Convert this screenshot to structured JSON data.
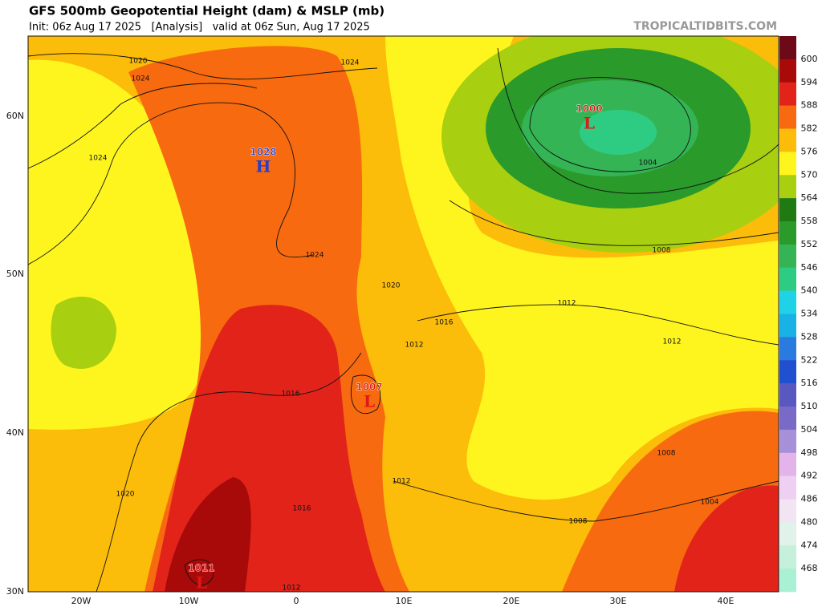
{
  "header": {
    "title": "GFS 500mb Geopotential Height (dam) & MSLP (mb)",
    "subtitle": "Init: 06z Aug 17 2025   [Analysis]   valid at 06z Sun, Aug 17 2025",
    "credit": "TROPICALTIDBITS.COM"
  },
  "colorbar": {
    "swatches": [
      "#6e0a18",
      "#a80a0a",
      "#e2231a",
      "#f76a0f",
      "#fcbc0a",
      "#fff51e",
      "#a8cf10",
      "#1f7a14",
      "#2a9a2a",
      "#34b455",
      "#2ecc82",
      "#20d2e8",
      "#1ab2e6",
      "#2a7ae0",
      "#2050d0",
      "#5858c0",
      "#7a6ac8",
      "#a890d8",
      "#e2b4ea",
      "#eed0f2",
      "#f2e4f2",
      "#e0f2ea",
      "#c4f0dc",
      "#aaf0d4"
    ],
    "labels": [
      600,
      594,
      588,
      582,
      576,
      570,
      564,
      558,
      552,
      546,
      540,
      534,
      528,
      522,
      516,
      510,
      504,
      498,
      492,
      486,
      480,
      474,
      468
    ]
  },
  "axes": {
    "latitudes": [
      "60N",
      "50N",
      "40N",
      "30N"
    ],
    "longitudes": [
      "20W",
      "10W",
      "0",
      "10E",
      "20E",
      "30E",
      "40E"
    ]
  },
  "pressure_centers": [
    {
      "value": "1028",
      "symbol": "H"
    },
    {
      "value": "1000",
      "symbol": "L"
    },
    {
      "value": "1007",
      "symbol": "L"
    },
    {
      "value": "1011",
      "symbol": "L"
    }
  ],
  "contour_labels": [
    "1020",
    "1024",
    "1024",
    "1024",
    "1024",
    "1020",
    "1016",
    "1012",
    "1016",
    "1012",
    "1012",
    "1008",
    "1004",
    "1008",
    "1004",
    "1008",
    "1012",
    "1016",
    "1020",
    "1012"
  ]
}
